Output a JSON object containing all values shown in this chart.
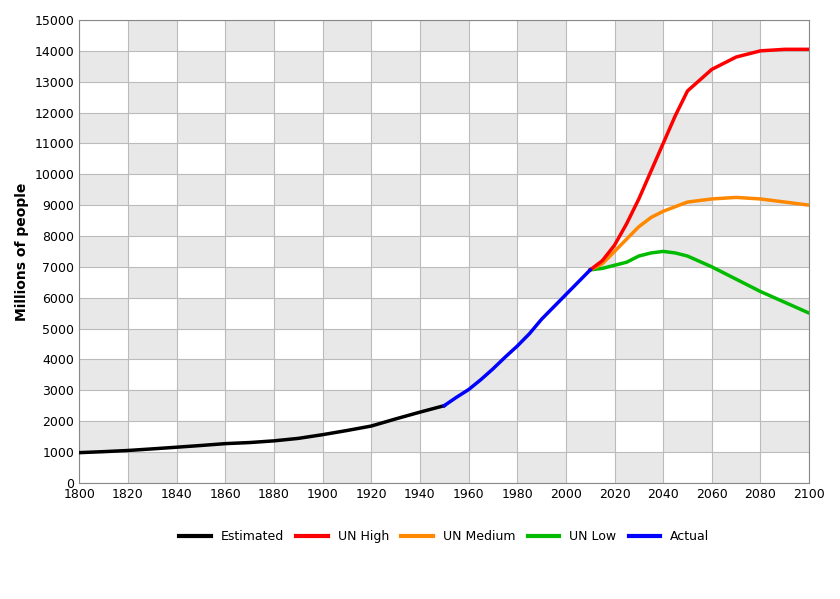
{
  "ylabel": "Millions of people",
  "ylim": [
    0,
    15000
  ],
  "yticks": [
    0,
    1000,
    2000,
    3000,
    4000,
    5000,
    6000,
    7000,
    8000,
    9000,
    10000,
    11000,
    12000,
    13000,
    14000,
    15000
  ],
  "xlim": [
    1800,
    2100
  ],
  "xticks": [
    1800,
    1820,
    1840,
    1860,
    1880,
    1900,
    1920,
    1940,
    1960,
    1980,
    2000,
    2020,
    2040,
    2060,
    2080,
    2100
  ],
  "estimated_color": "#000000",
  "actual_color": "#0000ff",
  "un_high_color": "#ff0000",
  "un_medium_color": "#ff8800",
  "un_low_color": "#00bb00",
  "line_width": 2.5,
  "estimated_x": [
    1800,
    1810,
    1820,
    1830,
    1840,
    1850,
    1860,
    1870,
    1880,
    1890,
    1900,
    1910,
    1920,
    1930,
    1940,
    1950
  ],
  "estimated_y": [
    978,
    1010,
    1048,
    1100,
    1154,
    1210,
    1270,
    1305,
    1360,
    1440,
    1560,
    1695,
    1840,
    2070,
    2290,
    2500
  ],
  "actual_x": [
    1950,
    1955,
    1960,
    1965,
    1970,
    1975,
    1980,
    1985,
    1990,
    1995,
    2000,
    2005,
    2010
  ],
  "actual_y": [
    2500,
    2770,
    3020,
    3340,
    3690,
    4070,
    4430,
    4830,
    5300,
    5700,
    6100,
    6500,
    6900
  ],
  "un_high_x": [
    2010,
    2015,
    2020,
    2025,
    2030,
    2035,
    2040,
    2045,
    2050,
    2060,
    2070,
    2080,
    2090,
    2100
  ],
  "un_high_y": [
    6900,
    7200,
    7700,
    8400,
    9200,
    10100,
    11000,
    11900,
    12700,
    13400,
    13800,
    14000,
    14050,
    14050
  ],
  "un_medium_x": [
    2010,
    2015,
    2020,
    2025,
    2030,
    2035,
    2040,
    2045,
    2050,
    2060,
    2070,
    2080,
    2090,
    2100
  ],
  "un_medium_y": [
    6900,
    7100,
    7500,
    7900,
    8300,
    8600,
    8800,
    8950,
    9100,
    9200,
    9250,
    9200,
    9100,
    9000
  ],
  "un_low_x": [
    2010,
    2015,
    2020,
    2025,
    2030,
    2035,
    2040,
    2045,
    2050,
    2060,
    2070,
    2080,
    2090,
    2100
  ],
  "un_low_y": [
    6900,
    6950,
    7050,
    7150,
    7350,
    7450,
    7500,
    7450,
    7350,
    7000,
    6600,
    6200,
    5850,
    5500
  ],
  "legend_labels": [
    "Estimated",
    "UN High",
    "UN Medium",
    "UN Low",
    "Actual"
  ],
  "legend_colors": [
    "#000000",
    "#ff0000",
    "#ff8800",
    "#00bb00",
    "#0000ff"
  ],
  "grid_major_color": "#bbbbbb",
  "grid_minor_color": "#dddddd",
  "checkerboard_color1": "#ffffff",
  "checkerboard_color2": "#e8e8e8"
}
